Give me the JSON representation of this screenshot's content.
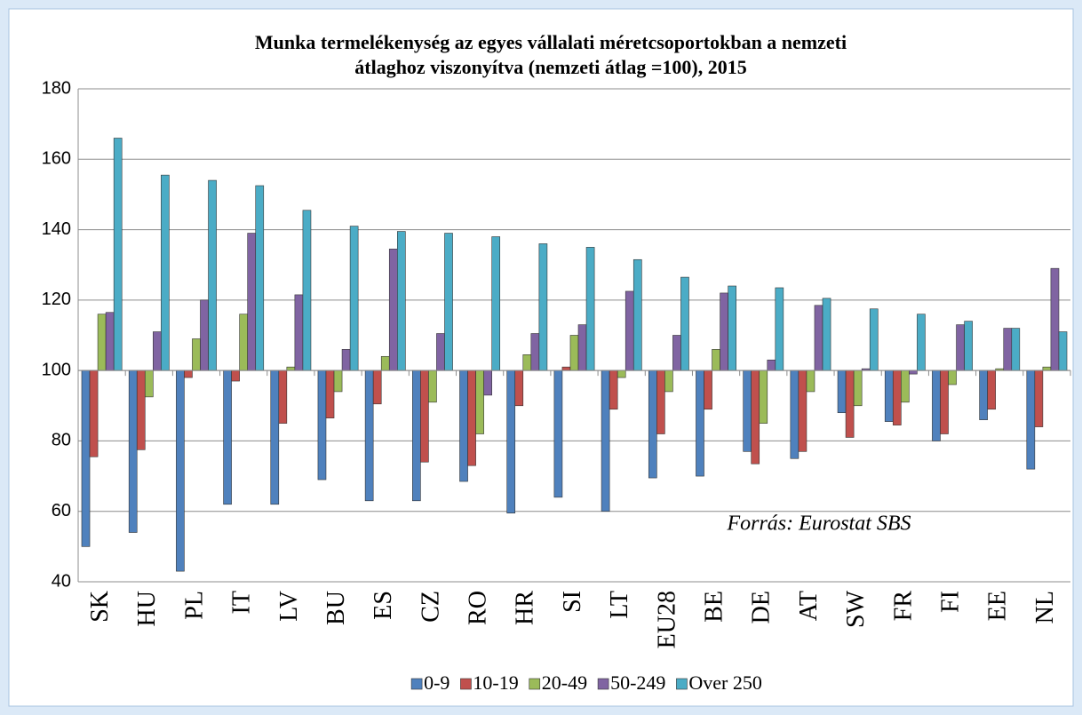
{
  "chart_data": {
    "type": "bar",
    "title": [
      "Munka termelékenység  az egyes  vállalati méretcsoportokban a nemzeti",
      "átlaghoz viszonyítva (nemzeti átlag =100), 2015"
    ],
    "annotation": "Forrás: Eurostat SBS",
    "categories": [
      "SK",
      "HU",
      "PL",
      "IT",
      "LV",
      "BU",
      "ES",
      "CZ",
      "RO",
      "HR",
      "SI",
      "LT",
      "EU28",
      "BE",
      "DE",
      "AT",
      "SW",
      "FR",
      "FI",
      "EE",
      "NL"
    ],
    "baseline": 100,
    "series": [
      {
        "name": "0-9",
        "color": "#4f81bd",
        "values": [
          50,
          54,
          43,
          62,
          62,
          69,
          63,
          63,
          68.5,
          59.5,
          64,
          60,
          69.5,
          70,
          77,
          75,
          88,
          85.5,
          80,
          86,
          72
        ]
      },
      {
        "name": "10-19",
        "color": "#c0504d",
        "values": [
          75.5,
          77.5,
          98,
          97,
          85,
          86.5,
          90.5,
          74,
          73,
          90,
          101,
          89,
          82,
          89,
          73.5,
          77,
          81,
          84.5,
          82,
          89,
          84
        ]
      },
      {
        "name": "20-49",
        "color": "#9bbb59",
        "values": [
          116,
          92.5,
          109,
          116,
          101,
          94,
          104,
          91,
          82,
          104.5,
          110,
          98,
          94,
          106,
          85,
          94,
          90,
          91,
          96,
          100.5,
          101
        ]
      },
      {
        "name": "50-249",
        "color": "#8064a2",
        "values": [
          116.5,
          111,
          120,
          139,
          121.5,
          106,
          134.5,
          110.5,
          93,
          110.5,
          113,
          122.5,
          110,
          122,
          103,
          118.5,
          100.5,
          99,
          113,
          112,
          129
        ]
      },
      {
        "name": "Over 250",
        "color": "#4bacc6",
        "values": [
          166,
          155.5,
          154,
          152.5,
          145.5,
          141,
          139.5,
          139,
          138,
          136,
          135,
          131.5,
          126.5,
          124,
          123.5,
          120.5,
          117.5,
          116,
          114,
          112,
          111
        ]
      }
    ],
    "ylim": [
      40,
      180
    ],
    "yticks": [
      40,
      60,
      80,
      100,
      120,
      140,
      160,
      180
    ],
    "grid": true,
    "legend": "bottom"
  }
}
